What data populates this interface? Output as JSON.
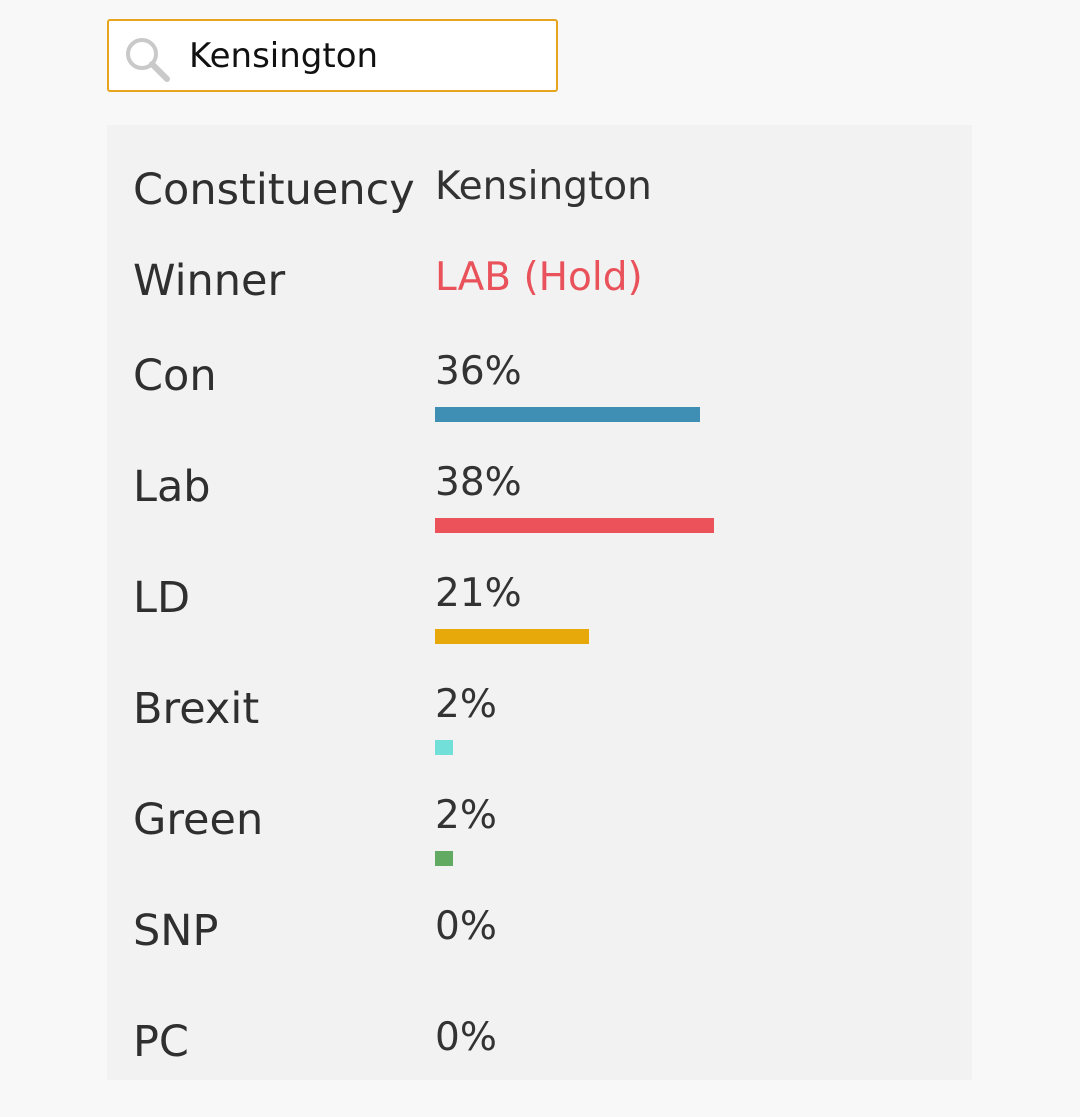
{
  "search": {
    "value": "Kensington",
    "icon": "search-icon"
  },
  "result": {
    "constituency_label": "Constituency",
    "constituency_value": "Kensington",
    "winner_label": "Winner",
    "winner_value": "LAB (Hold)",
    "winner_color": "#e9525b"
  },
  "parties": [
    {
      "name": "Con",
      "share": "36%",
      "percent": 36,
      "color": "#3f8fb5"
    },
    {
      "name": "Lab",
      "share": "38%",
      "percent": 38,
      "color": "#ec525a"
    },
    {
      "name": "LD",
      "share": "21%",
      "percent": 21,
      "color": "#e7a80a"
    },
    {
      "name": "Brexit",
      "share": "2%",
      "percent": 2,
      "color": "#72e0d9"
    },
    {
      "name": "Green",
      "share": "2%",
      "percent": 2,
      "color": "#62aa62"
    },
    {
      "name": "SNP",
      "share": "0%",
      "percent": 0,
      "color": "#f7d54a"
    },
    {
      "name": "PC",
      "share": "0%",
      "percent": 0,
      "color": "#2e8b57"
    }
  ]
}
